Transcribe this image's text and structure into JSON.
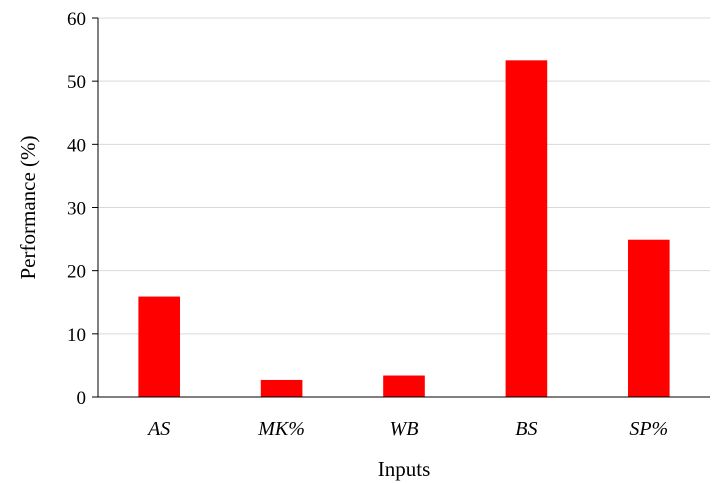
{
  "chart_data": {
    "type": "bar",
    "title": "",
    "xlabel": "Inputs",
    "ylabel": "Performance (%)",
    "categories": [
      "AS",
      "MK%",
      "WB",
      "BS",
      "SP%"
    ],
    "values": [
      15.9,
      2.7,
      3.4,
      53.3,
      24.9
    ],
    "ylim": [
      0,
      60
    ],
    "yticks": [
      0,
      10,
      20,
      30,
      40,
      50,
      60
    ],
    "ytick_labels": [
      "0",
      "10",
      "20",
      "30",
      "40",
      "50",
      "60"
    ],
    "grid": true,
    "legend": "none",
    "bar_color": "#ff0000",
    "grid_color": "#d9d9d9",
    "axis_color": "#000000"
  }
}
